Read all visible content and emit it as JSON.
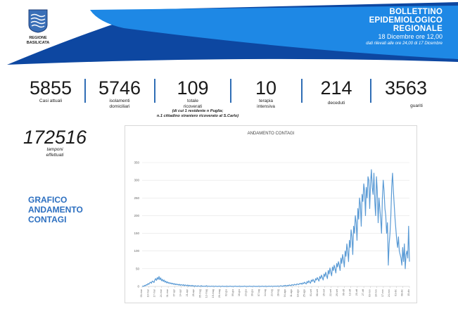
{
  "logo": {
    "name": "regione-basilicata-crest",
    "line1": "REGIONE",
    "line2": "BASILICATA"
  },
  "header": {
    "title_line1": "BOLLETTINO",
    "title_line2": "EPIDEMIOLOGICO",
    "title_line3": "REGIONALE",
    "date": "18 Dicembre ore 12,00",
    "note": "dati rilevati alle ore 24,00 di 17 Dicembre",
    "colors": {
      "primary": "#1e88e5",
      "secondary": "#0d47a1"
    }
  },
  "stats": [
    {
      "value": "5855",
      "label": "Casi attuali"
    },
    {
      "value": "5746",
      "label": "isolamenti domiciliari"
    },
    {
      "value": "109",
      "label": "totale ricoverati"
    },
    {
      "value": "10",
      "label": "terapia intensiva"
    },
    {
      "value": "214",
      "label": "deceduti"
    },
    {
      "value": "3563",
      "label": "guariti"
    }
  ],
  "ricoverati_note": {
    "line1": "(di cui 1 residente n Puglia;",
    "line2": "n.1 cittadino straniero ricoverato al S.Carlo)"
  },
  "tamponi": {
    "value": "172516",
    "label_line1": "tamponi",
    "label_line2": "effettuati"
  },
  "section_title": {
    "line1": "GRAFICO",
    "line2": "ANDAMENTO",
    "line3": "CONTAGI"
  },
  "chart_data": {
    "type": "line",
    "title": "ANDAMENTO CONTAGI",
    "ylim": [
      0,
      350
    ],
    "yticks": [
      0,
      50,
      100,
      150,
      200,
      250,
      300,
      350
    ],
    "grid": true,
    "color": "#5b9bd5",
    "xtick_labels": [
      "03-mar",
      "10-mar",
      "17-mar",
      "24-mar",
      "31-mar",
      "07-apr",
      "14-apr",
      "21-apr",
      "28-apr",
      "05-mag",
      "12-mag",
      "19-mag",
      "26-mag",
      "02-giu",
      "09-giu",
      "16-giu",
      "23-giu",
      "30-giu",
      "07-lug",
      "14-lug",
      "21-lug",
      "28-lug",
      "04-ago",
      "11-ago",
      "18-ago",
      "25-ago",
      "01-set",
      "08-set",
      "15-set",
      "22-set",
      "29-set",
      "06-ott",
      "13-ott",
      "20-ott",
      "27-ott",
      "03-nov",
      "10-nov",
      "17-nov",
      "24-nov",
      "01-dic",
      "08-dic",
      "15-dic"
    ],
    "values": [
      0,
      1,
      0,
      3,
      2,
      5,
      4,
      8,
      6,
      10,
      12,
      9,
      15,
      14,
      11,
      18,
      22,
      17,
      25,
      20,
      28,
      19,
      24,
      16,
      20,
      14,
      18,
      12,
      15,
      10,
      13,
      9,
      11,
      8,
      10,
      7,
      9,
      6,
      8,
      5,
      7,
      5,
      6,
      4,
      6,
      3,
      5,
      4,
      3,
      5,
      2,
      4,
      3,
      2,
      4,
      1,
      3,
      2,
      1,
      3,
      1,
      2,
      0,
      2,
      1,
      0,
      2,
      1,
      0,
      1,
      2,
      0,
      1,
      0,
      1,
      0,
      2,
      1,
      0,
      1,
      0,
      0,
      1,
      0,
      1,
      0,
      0,
      1,
      0,
      0,
      0,
      1,
      0,
      0,
      0,
      1,
      0,
      0,
      0,
      0,
      1,
      0,
      0,
      0,
      1,
      0,
      0,
      0,
      0,
      0,
      1,
      0,
      0,
      0,
      0,
      1,
      0,
      0,
      0,
      0,
      0,
      1,
      0,
      0,
      0,
      0,
      0,
      1,
      0,
      0,
      0,
      0,
      1,
      0,
      0,
      0,
      0,
      0,
      1,
      0,
      0,
      0,
      1,
      0,
      0,
      0,
      1,
      0,
      0,
      0,
      1,
      0,
      0,
      1,
      0,
      0,
      1,
      0,
      1,
      0,
      1,
      1,
      0,
      1,
      2,
      1,
      0,
      2,
      1,
      3,
      2,
      1,
      3,
      2,
      4,
      3,
      2,
      5,
      4,
      3,
      6,
      5,
      4,
      7,
      6,
      5,
      8,
      7,
      9,
      6,
      10,
      8,
      12,
      9,
      7,
      14,
      10,
      16,
      12,
      9,
      18,
      14,
      20,
      15,
      11,
      22,
      18,
      25,
      20,
      15,
      28,
      22,
      32,
      25,
      18,
      35,
      28,
      40,
      30,
      22,
      45,
      35,
      52,
      40,
      30,
      55,
      45,
      60,
      50,
      38,
      65,
      55,
      70,
      60,
      45,
      80,
      65,
      90,
      75,
      55,
      100,
      85,
      120,
      100,
      70,
      130,
      110,
      160,
      140,
      90,
      170,
      150,
      200,
      180,
      130,
      220,
      190,
      250,
      230,
      170,
      260,
      240,
      290,
      270,
      200,
      280,
      250,
      310,
      300,
      220,
      290,
      330,
      280,
      260,
      320,
      240,
      200,
      310,
      270,
      180,
      250,
      220,
      190,
      150,
      250,
      300,
      270,
      220,
      200,
      150,
      180,
      60,
      120,
      150,
      200,
      280,
      320,
      270,
      230,
      190,
      160,
      130,
      110,
      140,
      100,
      90,
      80,
      60,
      110,
      70,
      120,
      50,
      90,
      100,
      80,
      170,
      70
    ]
  }
}
